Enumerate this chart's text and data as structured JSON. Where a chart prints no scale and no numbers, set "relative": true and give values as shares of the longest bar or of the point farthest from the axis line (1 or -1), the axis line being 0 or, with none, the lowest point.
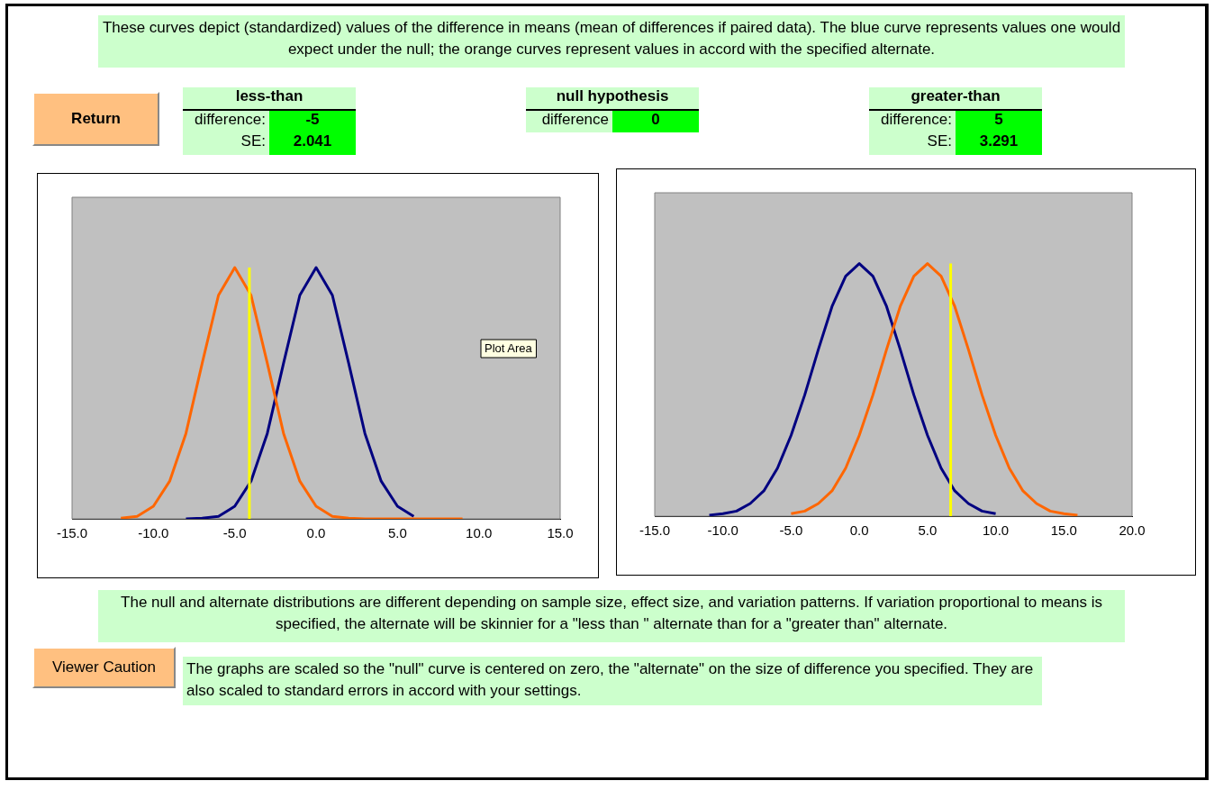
{
  "chart_data": [
    {
      "type": "other",
      "annotations": [
        "These curves depict (standardized) values of the difference in means (mean of differences if paired data). The blue curve represents values one would expect under the null; the orange curves represent values in accord with the specified alternate.",
        "Return",
        "less-than",
        "difference:",
        "-5",
        "SE:",
        "2.041",
        "null hypothesis",
        "difference",
        "0",
        "greater-than",
        "difference:",
        "5",
        "SE:",
        "3.291",
        "The null and alternate distributions are different depending on sample size, effect size, and variation patterns.  If variation proportional to means is specified, the alternate will be skinnier for a \"less than \" alternate than for a \"greater than\" alternate.",
        "Viewer Caution",
        "The graphs are scaled so the \"null\" curve is centered on zero, the \"alternate\" on the size of difference you specified.  They are also scaled to standard errors in accord with your settings."
      ]
    },
    {
      "type": "line",
      "relative": true,
      "legend": false,
      "grid": false,
      "marker": "none",
      "annotations": [
        "Plot Area"
      ],
      "xlim": [
        -15,
        15
      ],
      "xticks": [
        {
          "value": -15,
          "label": "-15.0"
        },
        {
          "value": -10,
          "label": "-10.0"
        },
        {
          "value": -5,
          "label": "-5.0"
        },
        {
          "value": 0,
          "label": "0.0"
        },
        {
          "value": 5,
          "label": "5.0"
        },
        {
          "value": 10,
          "label": "10.0"
        },
        {
          "value": 15,
          "label": "15.0"
        }
      ],
      "x": [
        -12,
        -11,
        -10,
        -9,
        -8,
        -7,
        -6,
        -5,
        -4,
        -3,
        -2,
        -1,
        0,
        1,
        2,
        3,
        4,
        5,
        6,
        7,
        8,
        9
      ],
      "series": [
        {
          "color": "#000080",
          "x": [
            -8,
            -7,
            -6,
            -5,
            -4,
            -3,
            -2,
            -1,
            0,
            1,
            2,
            3,
            4,
            5,
            6
          ],
          "values": [
            0,
            0.003,
            0.01,
            0.05,
            0.15,
            0.34,
            0.62,
            0.89,
            1,
            0.89,
            0.62,
            0.34,
            0.15,
            0.05,
            0.01
          ]
        },
        {
          "color": "#ff6600",
          "values": [
            0.003,
            0.01,
            0.05,
            0.15,
            0.34,
            0.62,
            0.89,
            1,
            0.89,
            0.62,
            0.34,
            0.15,
            0.05,
            0.01,
            0.003,
            0,
            0,
            0,
            0,
            0,
            0,
            0
          ]
        }
      ],
      "ref_lines": [
        {
          "axis": "x",
          "value": -4.1,
          "color": "#ffff00"
        }
      ]
    },
    {
      "type": "line",
      "relative": true,
      "legend": false,
      "grid": false,
      "marker": "none",
      "xlim": [
        -15,
        20
      ],
      "xticks": [
        {
          "value": -15,
          "label": "-15.0"
        },
        {
          "value": -10,
          "label": "-10.0"
        },
        {
          "value": -5,
          "label": "-5.0"
        },
        {
          "value": 0,
          "label": "0.0"
        },
        {
          "value": 5,
          "label": "5.0"
        },
        {
          "value": 10,
          "label": "10.0"
        },
        {
          "value": 15,
          "label": "15.0"
        },
        {
          "value": 20,
          "label": "20.0"
        }
      ],
      "series": [
        {
          "color": "#000080",
          "x": [
            -11,
            -10,
            -9,
            -8,
            -7,
            -6,
            -5,
            -4,
            -3,
            -2,
            -1,
            0,
            1,
            2,
            3,
            4,
            5,
            6,
            7,
            8,
            9,
            10
          ],
          "values": [
            0.004,
            0.01,
            0.02,
            0.05,
            0.1,
            0.19,
            0.32,
            0.48,
            0.66,
            0.83,
            0.95,
            1,
            0.95,
            0.83,
            0.66,
            0.48,
            0.32,
            0.19,
            0.1,
            0.05,
            0.02,
            0.01
          ]
        },
        {
          "color": "#ff6600",
          "x": [
            -5,
            -4,
            -3,
            -2,
            -1,
            0,
            1,
            2,
            3,
            4,
            5,
            6,
            7,
            8,
            9,
            10,
            11,
            12,
            13,
            14,
            15,
            16
          ],
          "values": [
            0.01,
            0.02,
            0.05,
            0.1,
            0.19,
            0.32,
            0.48,
            0.66,
            0.83,
            0.95,
            1,
            0.95,
            0.83,
            0.66,
            0.48,
            0.32,
            0.19,
            0.1,
            0.05,
            0.02,
            0.01,
            0.004
          ]
        }
      ],
      "ref_lines": [
        {
          "axis": "x",
          "value": 6.7,
          "color": "#ffff00"
        }
      ]
    }
  ]
}
